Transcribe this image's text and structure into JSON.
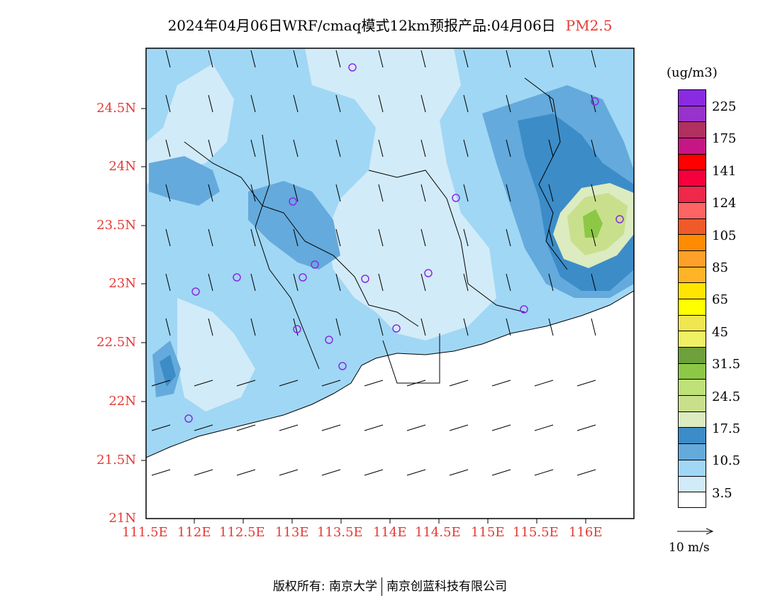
{
  "title": {
    "main": "2024年04月06日WRF/cmaq模式12km预报产品:04月06日",
    "pollutant": "PM2.5",
    "pollutant_color": "#e53935"
  },
  "axes": {
    "y_ticks": [
      "24.5N",
      "24N",
      "23.5N",
      "23N",
      "22.5N",
      "22N",
      "21.5N",
      "21N"
    ],
    "x_ticks": [
      "111.5E",
      "112E",
      "112.5E",
      "113E",
      "113.5E",
      "114E",
      "114.5E",
      "115E",
      "115.5E",
      "116E"
    ],
    "tick_color": "#e53935"
  },
  "legend": {
    "unit": "(ug/m3)",
    "colors": [
      "#8a2be2",
      "#9932cc",
      "#b03060",
      "#c71585",
      "#ff0000",
      "#f5003c",
      "#f0284b",
      "#ff6464",
      "#f05a28",
      "#ff8c00",
      "#ffa028",
      "#ffb428",
      "#ffe600",
      "#ffff00",
      "#f0e650",
      "#f0f064",
      "#6ea03c",
      "#8cc846",
      "#beE178",
      "#c8e08c",
      "#dcebc0",
      "#3c8cc8",
      "#64aadc",
      "#a0d7f5",
      "#d2ebf8",
      "#ffffff"
    ],
    "labels": [
      "225",
      "175",
      "141",
      "124",
      "105",
      "85",
      "65",
      "45",
      "31.5",
      "24.5",
      "17.5",
      "10.5",
      "3.5"
    ],
    "vector_label": "10  m/s"
  },
  "footer": {
    "left": "版权所有: 南京大学",
    "right": "南京创蓝科技有限公司"
  }
}
